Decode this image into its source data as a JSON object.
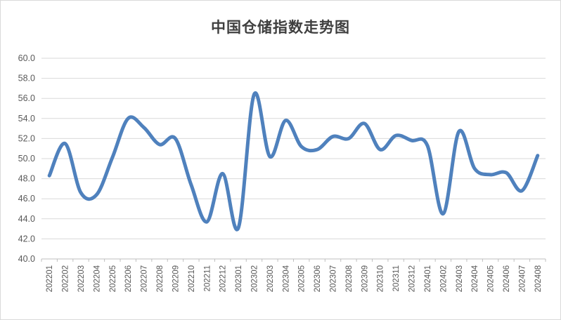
{
  "page": {
    "background": "#ffffff",
    "border_color": "#d9d9d9"
  },
  "chart_data": {
    "type": "line",
    "title": "中国仓储指数走势图",
    "categories": [
      "202201",
      "202202",
      "202203",
      "202204",
      "202205",
      "202206",
      "202207",
      "202208",
      "202209",
      "202210",
      "202211",
      "202212",
      "202301",
      "202302",
      "202303",
      "202304",
      "202305",
      "202306",
      "202307",
      "202308",
      "202309",
      "202310",
      "202311",
      "202312",
      "202401",
      "202402",
      "202403",
      "202404",
      "202405",
      "202406",
      "202407",
      "202408"
    ],
    "values": [
      48.3,
      51.5,
      46.6,
      46.4,
      50.1,
      54.0,
      53.1,
      51.4,
      52.0,
      47.4,
      43.7,
      48.5,
      43.1,
      56.4,
      50.2,
      53.8,
      51.2,
      50.9,
      52.2,
      52.0,
      53.5,
      50.9,
      52.3,
      51.8,
      51.3,
      44.5,
      52.7,
      49.0,
      48.4,
      48.6,
      46.8,
      50.3
    ],
    "xlabel": "",
    "ylabel": "",
    "ylim": [
      40.0,
      60.0
    ],
    "ytick_interval": 2.0,
    "ytick_decimals": 1,
    "grid": "horizontal",
    "legend": "none",
    "smooth": true,
    "line_color": "#4f81bd",
    "line_width": 5,
    "gridline_color": "#d9d9d9",
    "axis_color": "#bfbfbf",
    "label_color": "#595959",
    "title_color": "#3f3f3f"
  }
}
